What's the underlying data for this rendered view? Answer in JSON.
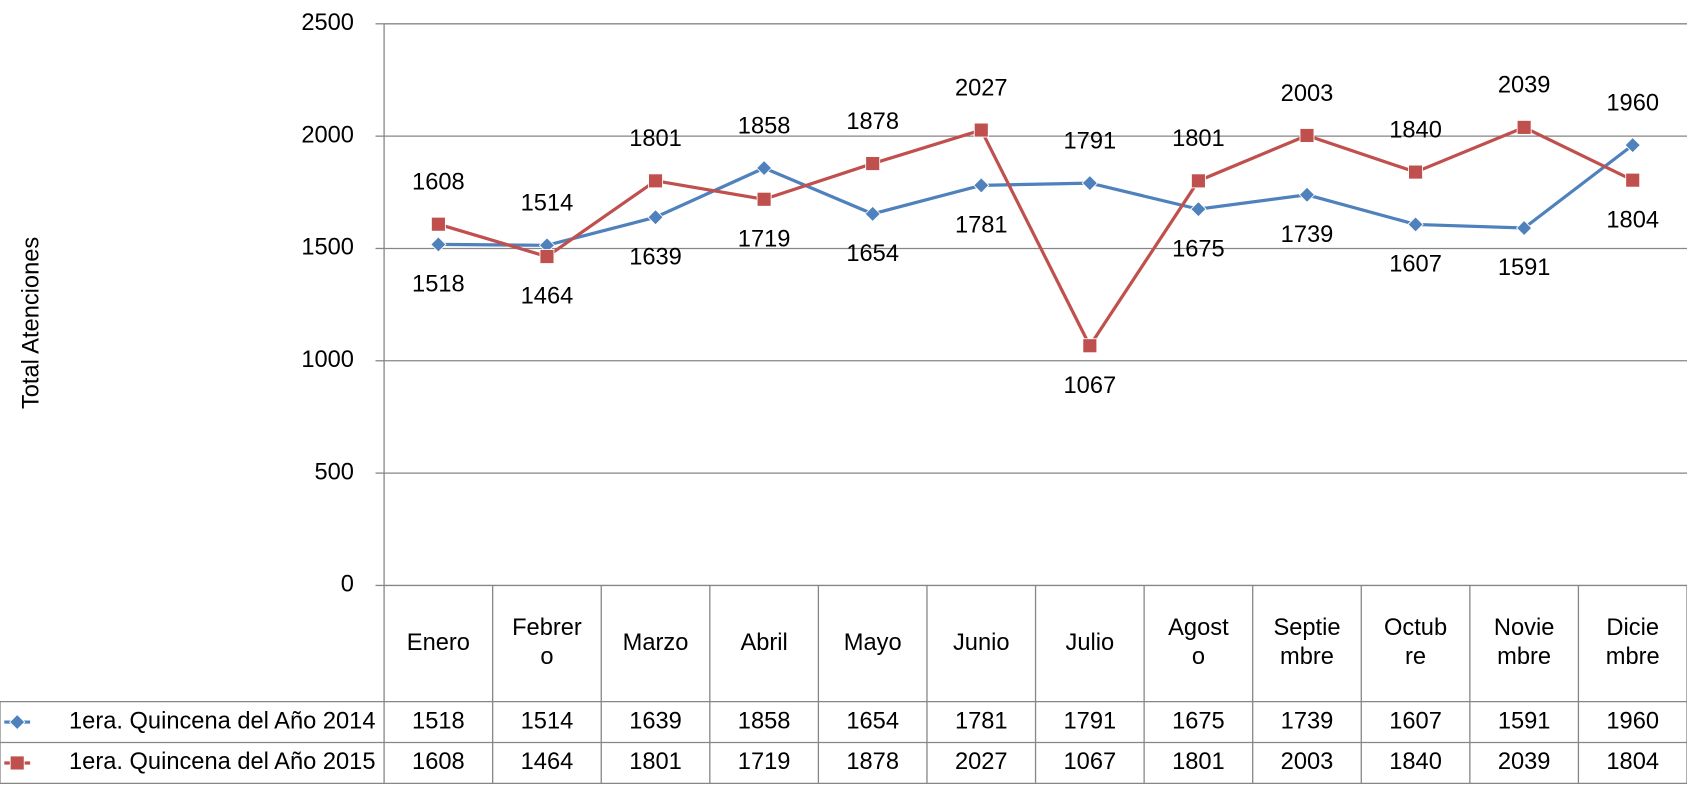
{
  "chart_data": {
    "type": "line",
    "y_label": "Total Atenciones",
    "categories": [
      "Enero",
      "Febrero",
      "Marzo",
      "Abril",
      "Mayo",
      "Junio",
      "Julio",
      "Agosto",
      "Septiembre",
      "Octubre",
      "Noviembre",
      "Diciembre"
    ],
    "series": [
      {
        "name": "1era. Quincena del Año 2014",
        "color": "#4f81bd",
        "marker": "diamond",
        "values": [
          1518,
          1514,
          1639,
          1858,
          1654,
          1781,
          1791,
          1675,
          1739,
          1607,
          1591,
          1960
        ]
      },
      {
        "name": "1era. Quincena del Año 2015",
        "color": "#c0504d",
        "marker": "square",
        "values": [
          1608,
          1464,
          1801,
          1719,
          1878,
          2027,
          1067,
          1801,
          2003,
          1840,
          2039,
          1804
        ]
      }
    ],
    "ylim": [
      0,
      2500
    ],
    "yticks": [
      0,
      500,
      1000,
      1500,
      2000,
      2500
    ],
    "grid": true,
    "data_table": true
  }
}
